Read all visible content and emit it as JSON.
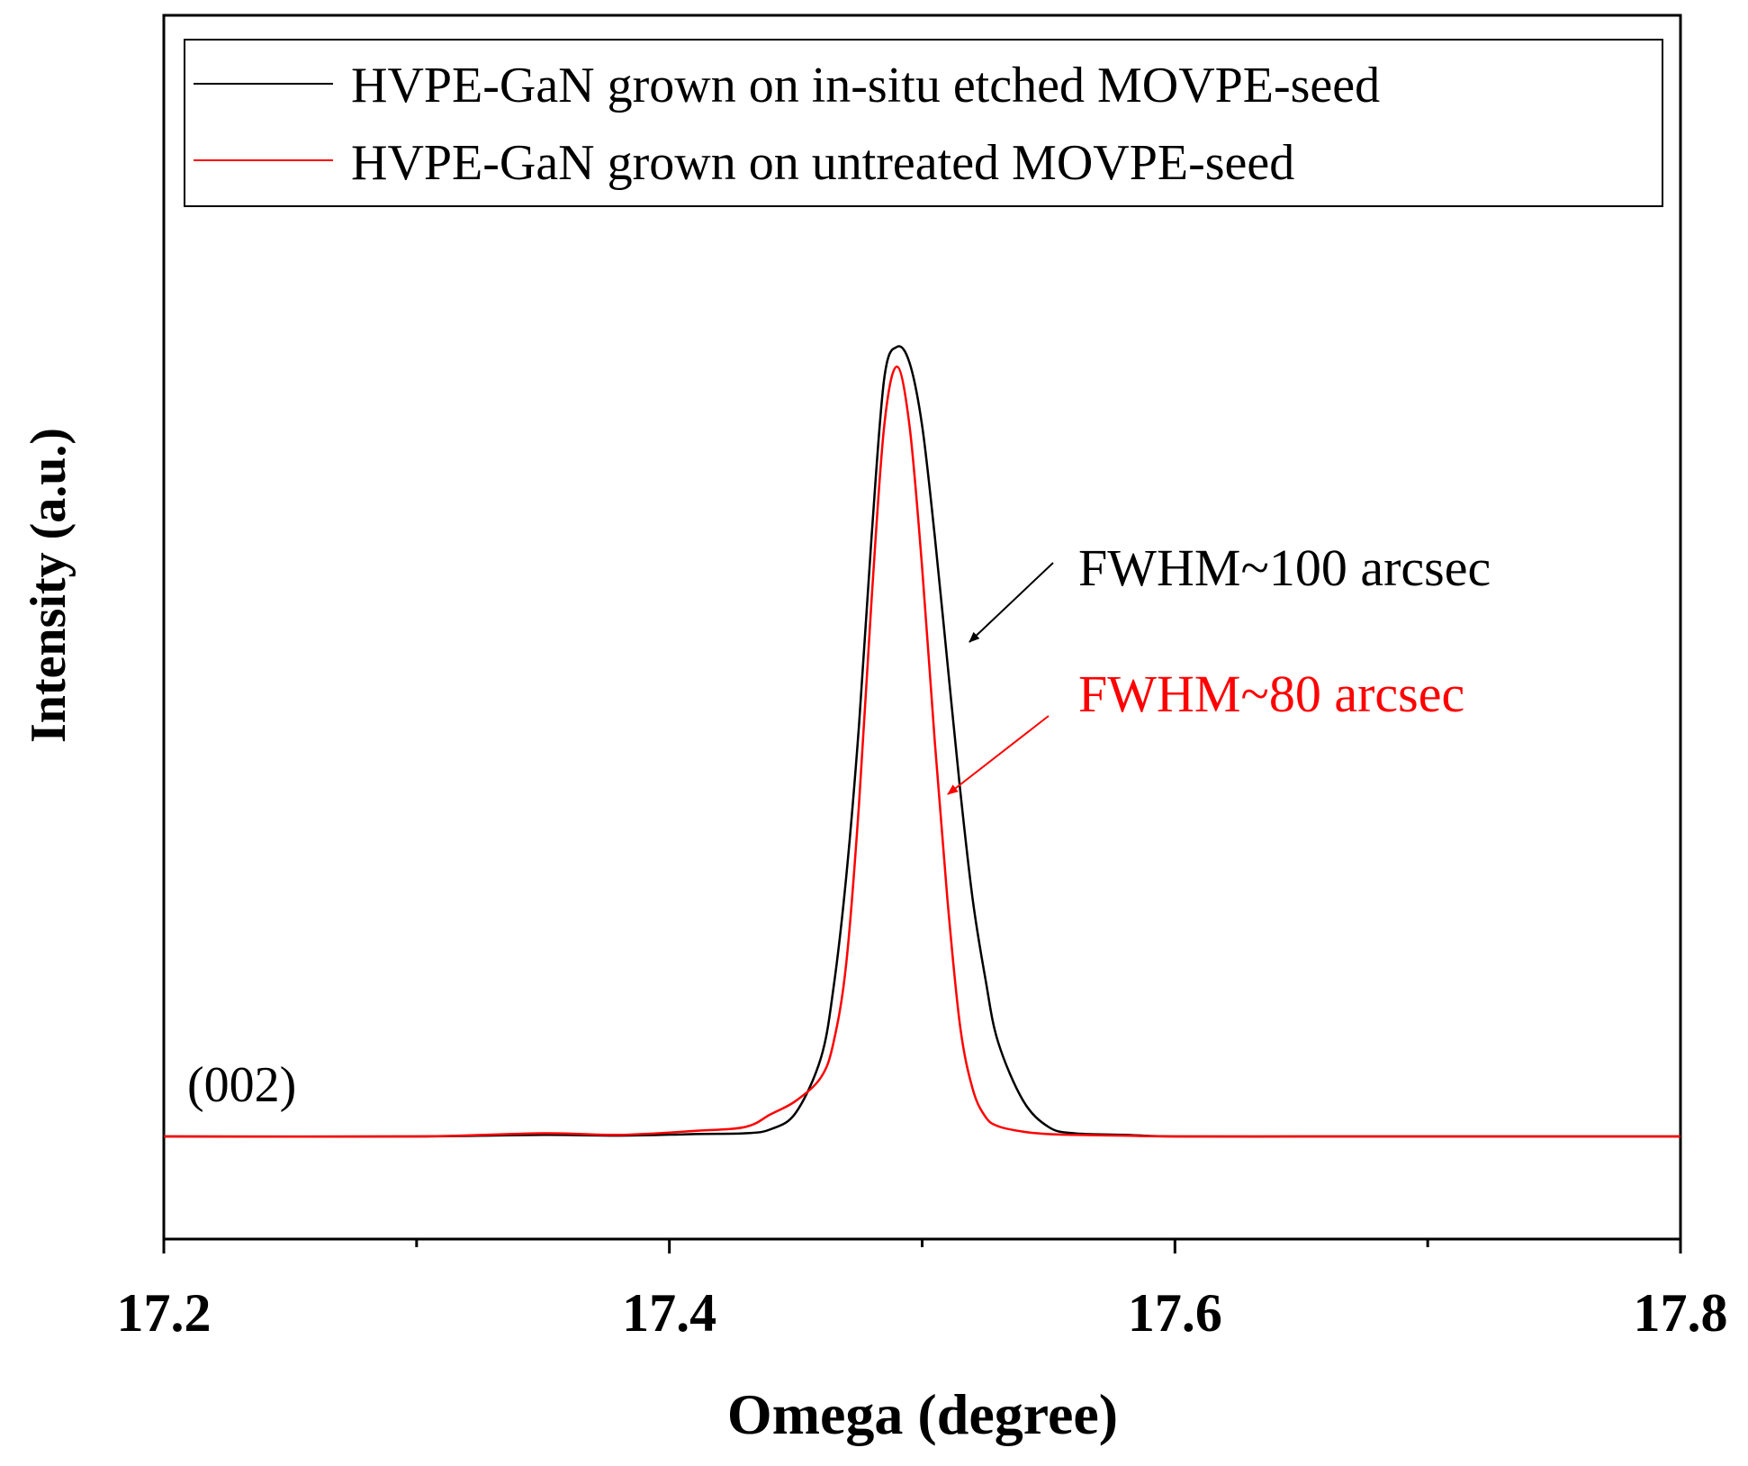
{
  "chart_data": {
    "type": "line",
    "title": "",
    "xlabel": "Omega (degree)",
    "ylabel": "Intensity (a.u.)",
    "xlim": [
      17.2,
      17.8
    ],
    "ylim": [
      -0.13,
      1.42
    ],
    "x_ticks": [
      17.2,
      17.4,
      17.6,
      17.8
    ],
    "x_minor_ticks": [
      17.3,
      17.5,
      17.7
    ],
    "x_tick_labels": [
      "17.2",
      "17.4",
      "17.6",
      "17.8"
    ],
    "grid": false,
    "legend_position": "top",
    "colors": {
      "series_black": "#000000",
      "series_red": "#ff0000",
      "axis": "#000000"
    },
    "series": [
      {
        "name": "HVPE-GaN grown on in-situ etched MOVPE-seed",
        "color": "#000000",
        "x": [
          17.2,
          17.3,
          17.35,
          17.38,
          17.41,
          17.43,
          17.44,
          17.45,
          17.46,
          17.465,
          17.47,
          17.475,
          17.48,
          17.485,
          17.49,
          17.495,
          17.5,
          17.505,
          17.51,
          17.515,
          17.52,
          17.525,
          17.53,
          17.54,
          17.55,
          17.56,
          17.58,
          17.6,
          17.65,
          17.7,
          17.8
        ],
        "y": [
          0.0,
          0.0,
          0.002,
          0.001,
          0.003,
          0.004,
          0.009,
          0.03,
          0.1,
          0.19,
          0.33,
          0.52,
          0.76,
          0.96,
          1.0,
          0.98,
          0.9,
          0.76,
          0.6,
          0.44,
          0.3,
          0.2,
          0.12,
          0.045,
          0.012,
          0.004,
          0.002,
          0.0,
          0.0,
          0.0,
          0.0
        ]
      },
      {
        "name": "HVPE-GaN grown on untreated MOVPE-seed",
        "color": "#ff0000",
        "x": [
          17.2,
          17.3,
          17.35,
          17.38,
          17.41,
          17.43,
          17.44,
          17.45,
          17.46,
          17.465,
          17.47,
          17.475,
          17.48,
          17.485,
          17.49,
          17.495,
          17.5,
          17.505,
          17.51,
          17.515,
          17.52,
          17.525,
          17.53,
          17.54,
          17.55,
          17.56,
          17.58,
          17.6,
          17.65,
          17.7,
          17.8
        ],
        "y": [
          0.0,
          0.0,
          0.004,
          0.002,
          0.007,
          0.012,
          0.028,
          0.045,
          0.075,
          0.12,
          0.22,
          0.42,
          0.68,
          0.9,
          0.975,
          0.9,
          0.72,
          0.5,
          0.3,
          0.14,
          0.06,
          0.025,
          0.013,
          0.006,
          0.003,
          0.002,
          0.001,
          0.0,
          0.0,
          0.0,
          0.0
        ]
      }
    ],
    "annotations": [
      {
        "text": "(002)",
        "color": "#000000"
      },
      {
        "text": "FWHM~100 arcsec",
        "color": "#000000",
        "arrow_to_series": 0
      },
      {
        "text": "FWHM~80 arcsec",
        "color": "#ff0000",
        "arrow_to_series": 1
      }
    ]
  }
}
